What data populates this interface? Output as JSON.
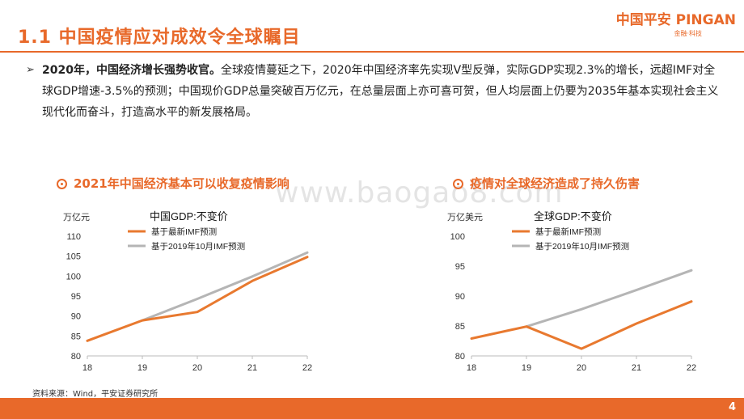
{
  "header": {
    "title": "1.1  中国疫情应对成效令全球瞩目"
  },
  "logo": {
    "main": "中国平安 PINGAN",
    "sub": "金融·科技"
  },
  "bullet": {
    "lead": "2020年，中国经济增长强势收官。",
    "body": "全球疫情蔓延之下，2020年中国经济率先实现V型反弹，实际GDP实现2.3%的增长，远超IMF对全球GDP增速-3.5%的预测；中国现价GDP总量突破百万亿元，在总量层面上亦可喜可贺，但人均层面上仍要为2035年基本实现社会主义现代化而奋斗，打造高水平的新发展格局。"
  },
  "watermark": "www.baogao8.com",
  "charts_section": {
    "left_title": "2021年中国经济基本可以收复疫情影响",
    "right_title": "疫情对全球经济造成了持久伤害"
  },
  "colors": {
    "accent": "#E8692A",
    "series_latest": "#E8792F",
    "series_2019": "#B5B5B5"
  },
  "chart_data": [
    {
      "type": "line",
      "title": "中国GDP:不变价",
      "unit": "万亿元",
      "x": [
        "18",
        "19",
        "20",
        "21",
        "22"
      ],
      "ylim": [
        80,
        110
      ],
      "yticks": [
        80,
        85,
        90,
        95,
        100,
        105,
        110
      ],
      "series": [
        {
          "name": "基于最新IMF预测",
          "values": [
            83.8,
            88.9,
            91.0,
            98.8,
            104.8
          ]
        },
        {
          "name": "基于2019年10月IMF预测",
          "values": [
            null,
            88.9,
            94.3,
            99.9,
            105.9
          ]
        }
      ]
    },
    {
      "type": "line",
      "title": "全球GDP:不变价",
      "unit": "万亿美元",
      "x": [
        "18",
        "19",
        "20",
        "21",
        "22"
      ],
      "ylim": [
        80,
        100
      ],
      "yticks": [
        80,
        85,
        90,
        95,
        100
      ],
      "series": [
        {
          "name": "基于最新IMF预测",
          "values": [
            82.9,
            84.9,
            81.2,
            85.4,
            89.1
          ]
        },
        {
          "name": "基于2019年10月IMF预测",
          "values": [
            null,
            84.9,
            87.8,
            91.0,
            94.3
          ]
        }
      ]
    }
  ],
  "source": "资料来源：Wind，平安证券研究所",
  "page_number": "4"
}
